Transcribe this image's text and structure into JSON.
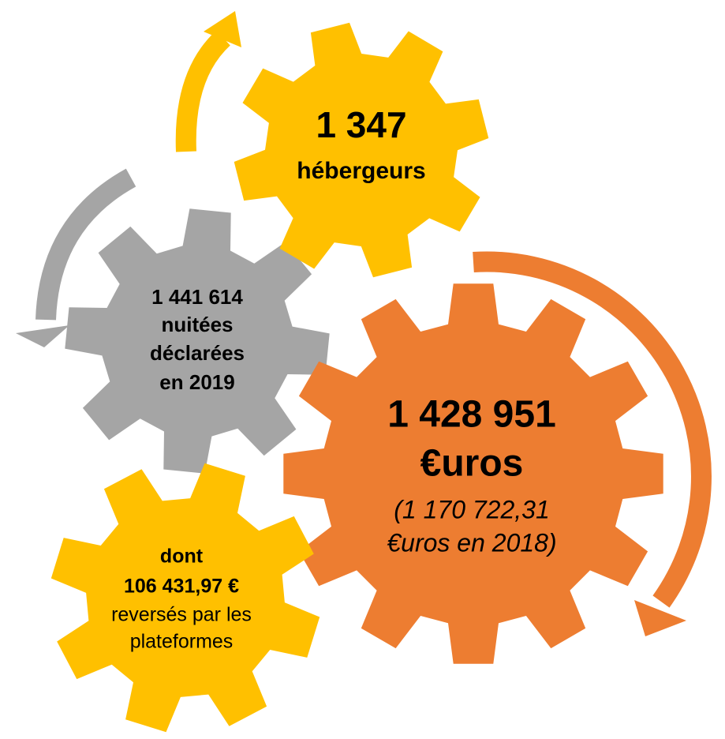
{
  "nodes": [
    {
      "lines": [
        "1 347",
        "hébergeurs"
      ]
    },
    {
      "lines": [
        "1 441 614",
        "nuitées",
        "déclarées",
        "en 2019"
      ]
    },
    {
      "lines": [
        "1 428 951",
        "€uros",
        "(1 170 722,31",
        "€uros en 2018)"
      ]
    },
    {
      "lines": [
        "dont",
        "106 431,97 €",
        "reversés par les",
        "plateformes"
      ]
    }
  ]
}
